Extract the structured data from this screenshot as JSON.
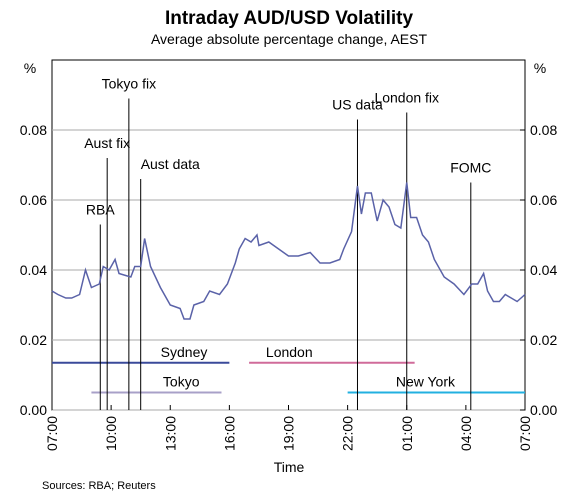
{
  "chart_data": {
    "type": "line",
    "title": "Intraday AUD/USD Volatility",
    "subtitle": "Average absolute percentage change, AEST",
    "x_label": "Time",
    "y_unit": "%",
    "y2_unit": "%",
    "source": "Sources: RBA; Reuters",
    "color": "#5a62a8",
    "xlim": [
      0,
      24
    ],
    "xticks": [
      {
        "value": 0,
        "label": "07:00"
      },
      {
        "value": 3,
        "label": "10:00"
      },
      {
        "value": 6,
        "label": "13:00"
      },
      {
        "value": 9,
        "label": "16:00"
      },
      {
        "value": 12,
        "label": "19:00"
      },
      {
        "value": 15,
        "label": "22:00"
      },
      {
        "value": 18,
        "label": "01:00"
      },
      {
        "value": 21,
        "label": "04:00"
      },
      {
        "value": 24,
        "label": "07:00"
      }
    ],
    "ylim": [
      0,
      0.1
    ],
    "yticks": [
      {
        "value": 0,
        "label": "0.00"
      },
      0.02,
      0.04,
      0.06,
      0.08
    ],
    "y2lim": [
      0,
      0.1
    ],
    "y2ticks": [
      {
        "value": 0,
        "label": "0.00"
      },
      0.02,
      0.04,
      0.06,
      0.08
    ],
    "x": [
      0,
      0.3,
      0.7,
      1.0,
      1.4,
      1.7,
      2.0,
      2.4,
      2.6,
      2.9,
      3.2,
      3.4,
      4.0,
      4.2,
      4.5,
      4.7,
      5.0,
      5.5,
      6.0,
      6.5,
      6.7,
      7.0,
      7.2,
      7.7,
      8.0,
      8.5,
      8.9,
      9.3,
      9.5,
      9.8,
      10.1,
      10.4,
      10.5,
      11.0,
      11.5,
      12.0,
      12.5,
      13.1,
      13.6,
      14.1,
      14.6,
      14.8,
      15.2,
      15.5,
      15.7,
      15.9,
      16.2,
      16.5,
      16.8,
      17.1,
      17.4,
      17.7,
      18.0,
      18.2,
      18.5,
      18.8,
      19.1,
      19.4,
      19.9,
      20.4,
      20.9,
      21.3,
      21.6,
      21.9,
      22.1,
      22.4,
      22.7,
      23.0,
      23.3,
      23.6,
      24.0
    ],
    "values": [
      0.034,
      0.033,
      0.032,
      0.032,
      0.033,
      0.04,
      0.035,
      0.036,
      0.041,
      0.04,
      0.043,
      0.039,
      0.038,
      0.041,
      0.041,
      0.049,
      0.041,
      0.035,
      0.03,
      0.029,
      0.026,
      0.026,
      0.03,
      0.031,
      0.034,
      0.033,
      0.036,
      0.042,
      0.046,
      0.049,
      0.048,
      0.05,
      0.047,
      0.048,
      0.046,
      0.044,
      0.044,
      0.045,
      0.042,
      0.042,
      0.043,
      0.046,
      0.051,
      0.064,
      0.056,
      0.062,
      0.062,
      0.054,
      0.06,
      0.058,
      0.053,
      0.052,
      0.065,
      0.055,
      0.055,
      0.05,
      0.048,
      0.043,
      0.038,
      0.036,
      0.033,
      0.036,
      0.036,
      0.039,
      0.034,
      0.031,
      0.031,
      0.033,
      0.032,
      0.031,
      0.033
    ],
    "annotations": [
      {
        "label": "RBA",
        "x": 2.45,
        "y": 0.053
      },
      {
        "label": "Aust fix",
        "x": 2.8,
        "y": 0.072
      },
      {
        "label": "Tokyo fix",
        "x": 3.9,
        "y": 0.089
      },
      {
        "label": "Aust data",
        "x": 4.5,
        "y": 0.066
      },
      {
        "label": "US data",
        "x": 15.5,
        "y": 0.083
      },
      {
        "label": "London fix",
        "x": 18.0,
        "y": 0.085
      },
      {
        "label": "FOMC",
        "x": 21.25,
        "y": 0.065
      }
    ],
    "sessions": [
      {
        "name": "Sydney",
        "start": 0,
        "end": 9,
        "level": 0.0135,
        "color": "#3a4a9a"
      },
      {
        "name": "Tokyo",
        "start": 2,
        "end": 8.6,
        "level": 0.005,
        "color": "#a8a0c8"
      },
      {
        "name": "London",
        "start": 10,
        "end": 18.4,
        "level": 0.0135,
        "color": "#d06b9a"
      },
      {
        "name": "New York",
        "start": 15,
        "end": 24,
        "level": 0.005,
        "color": "#22b0e0"
      }
    ]
  }
}
